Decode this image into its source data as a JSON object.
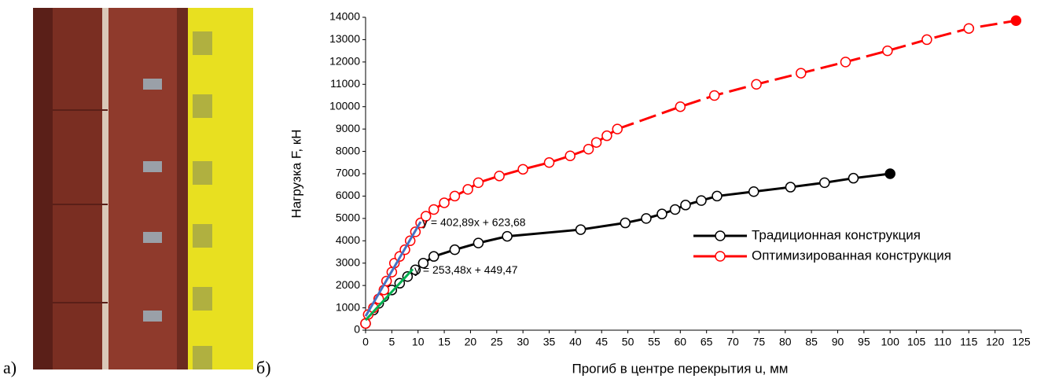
{
  "panels": [
    "а)",
    "б)"
  ],
  "chart_data": {
    "type": "line",
    "x_label": "Прогиб в центре перекрытия u, мм",
    "y_label": "Нагрузка F, кН",
    "xlim": [
      0,
      125
    ],
    "ylim": [
      0,
      14000
    ],
    "xticks": [
      0,
      5,
      10,
      15,
      20,
      25,
      30,
      35,
      40,
      45,
      50,
      55,
      60,
      65,
      70,
      75,
      80,
      85,
      90,
      95,
      100,
      105,
      110,
      115,
      120,
      125
    ],
    "yticks": [
      0,
      1000,
      2000,
      3000,
      4000,
      5000,
      6000,
      7000,
      8000,
      9000,
      10000,
      11000,
      12000,
      13000,
      14000
    ],
    "grid": false,
    "legend": "right",
    "filled_last_marker": true,
    "series": [
      {
        "name": "Традиционная конструкция",
        "color": "#000000",
        "x": [
          0,
          1.5,
          2.5,
          3.5,
          5,
          6.5,
          8,
          9.5,
          11,
          13,
          17,
          21.5,
          27,
          41,
          49.5,
          53.5,
          56.5,
          59,
          61,
          64,
          67,
          74,
          81,
          87.5,
          93,
          100
        ],
        "values": [
          300,
          900,
          1200,
          1500,
          1800,
          2100,
          2400,
          2700,
          3000,
          3300,
          3600,
          3900,
          4200,
          4500,
          4800,
          5000,
          5200,
          5400,
          5600,
          5800,
          6000,
          6200,
          6400,
          6600,
          6800,
          7000
        ]
      },
      {
        "name": "Оптимизированная конструкция",
        "color": "#ff0000",
        "dashed_from": 26,
        "x": [
          0,
          0.5,
          1.5,
          2.5,
          3.5,
          4,
          5,
          5.5,
          6.5,
          7.5,
          8.5,
          9.5,
          10.5,
          11.5,
          13,
          15,
          17,
          19.5,
          21.5,
          25.5,
          30,
          35,
          39,
          42.5,
          44,
          46,
          48,
          60,
          66.5,
          74.5,
          83,
          91.5,
          99.5,
          107,
          115,
          124
        ],
        "values": [
          300,
          700,
          1000,
          1400,
          1800,
          2200,
          2600,
          3000,
          3300,
          3600,
          4000,
          4400,
          4800,
          5100,
          5400,
          5700,
          6000,
          6300,
          6600,
          6900,
          7200,
          7500,
          7800,
          8100,
          8400,
          8700,
          9000,
          10000,
          10500,
          11000,
          11500,
          12000,
          12500,
          13000,
          13500,
          13850
        ]
      }
    ],
    "trendlines": [
      {
        "label": "y = 402,89x + 623,68",
        "slope": 402.89,
        "intercept": 623.68,
        "color": "#4472c4",
        "xlim": [
          0,
          10.5
        ]
      },
      {
        "label": "y = 253,48x + 449,47",
        "slope": 253.48,
        "intercept": 449.47,
        "color": "#00b050",
        "xlim": [
          0,
          9
        ]
      }
    ]
  }
}
